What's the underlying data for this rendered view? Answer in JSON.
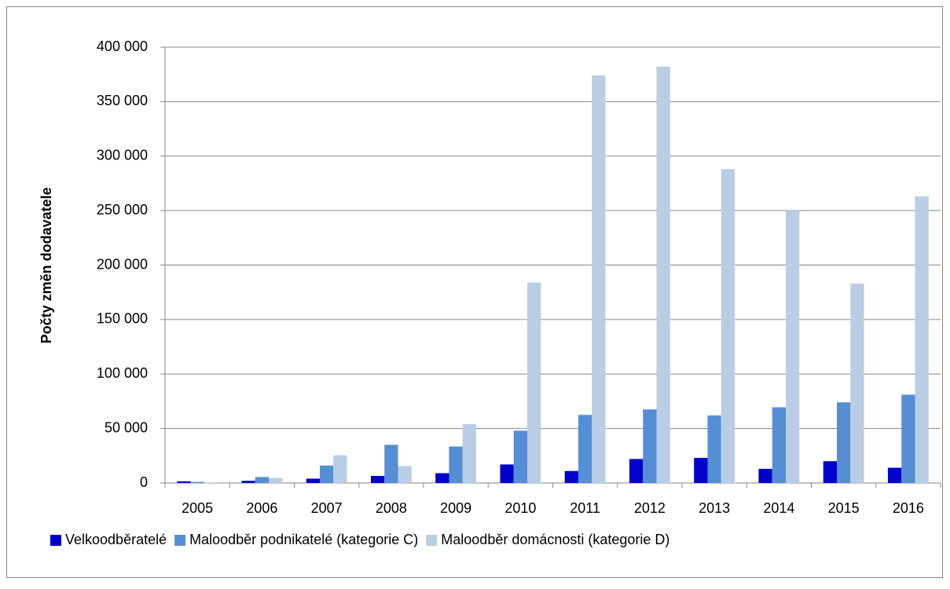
{
  "chart_data": {
    "type": "bar",
    "y_label": "Počty změn dodavatele",
    "categories": [
      "2005",
      "2006",
      "2007",
      "2008",
      "2009",
      "2010",
      "2011",
      "2012",
      "2013",
      "2014",
      "2015",
      "2016"
    ],
    "series": [
      {
        "name": "Velkoodběratelé",
        "color": "#0000cc",
        "values": [
          1500,
          2000,
          4000,
          6500,
          9000,
          17000,
          11000,
          22000,
          23000,
          13000,
          20000,
          14000
        ]
      },
      {
        "name": "Maloodběr podnikatelé (kategorie C)",
        "color": "#558ed5",
        "values": [
          1000,
          5500,
          16000,
          35000,
          33500,
          48000,
          62500,
          67500,
          62000,
          69500,
          74000,
          81000
        ]
      },
      {
        "name": "Maloodběr domácnosti (kategorie D)",
        "color": "#b9cde5",
        "values": [
          500,
          4500,
          25500,
          15500,
          54000,
          184000,
          374000,
          382000,
          288000,
          250000,
          183000,
          263000
        ]
      }
    ],
    "ylim": [
      0,
      400000
    ],
    "yticks": [
      0,
      {
        "value": 50000,
        "label": "50 000"
      },
      {
        "value": 100000,
        "label": "100 000"
      },
      {
        "value": 150000,
        "label": "150 000"
      },
      {
        "value": 200000,
        "label": "200 000"
      },
      {
        "value": 250000,
        "label": "250 000"
      },
      {
        "value": 300000,
        "label": "300 000"
      },
      {
        "value": 350000,
        "label": "350 000"
      },
      {
        "value": 400000,
        "label": "400 000"
      }
    ],
    "grid": true,
    "legend": "bottom"
  }
}
